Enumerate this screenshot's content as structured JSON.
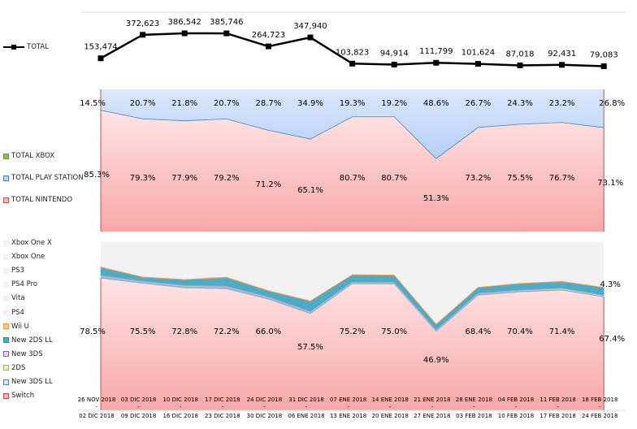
{
  "chart_data": [
    {
      "type": "line",
      "title": "",
      "series": [
        {
          "name": "TOTAL",
          "values": [
            153474,
            372623,
            386542,
            385746,
            264723,
            347940,
            103823,
            94914,
            111799,
            101624,
            87018,
            92431,
            79083
          ],
          "labels": [
            "153,474",
            "372,623",
            "386,542",
            "385,746",
            "264,723",
            "347,940",
            "103,823",
            "94,914",
            "111,799",
            "101,624",
            "87,018",
            "92,431",
            "79,083"
          ]
        }
      ]
    },
    {
      "type": "area",
      "stacked_percent": true,
      "series": [
        {
          "name": "TOTAL NINTENDO",
          "color": "#f4a6a6",
          "values": [
            85.3,
            79.3,
            77.9,
            79.2,
            71.2,
            65.1,
            80.7,
            80.7,
            51.3,
            73.2,
            75.5,
            76.7,
            73.1
          ]
        },
        {
          "name": "TOTAL PLAY STATION",
          "color": "#a9c8f4",
          "values": [
            14.5,
            20.7,
            21.8,
            20.7,
            28.7,
            34.9,
            19.3,
            19.2,
            48.6,
            26.7,
            24.3,
            23.2,
            26.8
          ]
        },
        {
          "name": "TOTAL XBOX",
          "color": "#8cbf4f",
          "values": [
            0.2,
            0,
            0.3,
            0.1,
            0.1,
            0,
            0,
            0.1,
            0.1,
            0.1,
            0.2,
            0.1,
            0.1
          ]
        }
      ]
    },
    {
      "type": "area",
      "stacked_percent": true,
      "series": [
        {
          "name": "Switch",
          "color": "#f4a6a6",
          "values": [
            78.5,
            75.5,
            72.8,
            72.2,
            66.0,
            57.5,
            75.2,
            75.0,
            46.9,
            68.4,
            70.4,
            71.4,
            67.4
          ],
          "labeled": true
        },
        {
          "name": "New 3DS LL",
          "color": "#8eb4e3",
          "values": [
            1.0,
            0.8,
            0.9,
            1.0,
            0.9,
            0.8,
            0.6,
            0.6,
            0.5,
            0.7,
            0.7,
            0.6,
            0.6
          ]
        },
        {
          "name": "2DS",
          "color": "#c3d69b",
          "values": [
            0.3,
            0.2,
            0.3,
            0.3,
            0.2,
            0.2,
            0.2,
            0.2,
            0.2,
            0.2,
            0.2,
            0.4,
            0.2
          ]
        },
        {
          "name": "New 3DS",
          "color": "#b3a2c7",
          "values": [
            0.7,
            0.6,
            0.6,
            0.6,
            0.6,
            0.6,
            0.6,
            0.6,
            0.5,
            0.6,
            0.5,
            0.5,
            0.5
          ]
        },
        {
          "name": "New 2DS LL",
          "color": "#4bacc6",
          "values": [
            4.5,
            2.0,
            3.0,
            4.8,
            3.3,
            5.8,
            3.9,
            3.9,
            2.9,
            3.1,
            3.5,
            3.6,
            4.3
          ],
          "end_label": "4.3%"
        },
        {
          "name": "Wii U",
          "color": "#f7a15a",
          "values": [
            0.3,
            0.2,
            0.3,
            0.3,
            0.2,
            0.2,
            0.2,
            0.2,
            0.3,
            0.2,
            0.2,
            0.2,
            0.1
          ]
        },
        {
          "name": "PS4",
          "color": "#f2f2f2",
          "values": []
        },
        {
          "name": "Vita",
          "color": "#f2f2f2",
          "values": []
        },
        {
          "name": "PS4 Pro",
          "color": "#f2f2f2",
          "values": []
        },
        {
          "name": "PS3",
          "color": "#f2f2f2",
          "values": []
        },
        {
          "name": "Xbox One",
          "color": "#f2f2f2",
          "values": []
        },
        {
          "name": "Xbox One X",
          "color": "#f2f2f2",
          "values": []
        }
      ]
    }
  ],
  "categories_top": [
    "26 NOV 2018",
    "03 DIC 2018",
    "10 DIC 2018",
    "17 DIC 2018",
    "24 DIC 2018",
    "31 DIC 2018",
    "07 ENE 2018",
    "14 ENE 2018",
    "21 ENE 2018",
    "28 ENE 2018",
    "04 FEB 2018",
    "11 FEB 2018",
    "18 FEB 2018"
  ],
  "categories_bottom": [
    "02 DIC 2018",
    "09 DIC 2018",
    "16 DIC 2018",
    "23 DIC 2018",
    "30 DIC 2018",
    "06 ENE 2018",
    "13 ENE 2018",
    "20 ENE 2018",
    "27 ENE 2018",
    "03 FEB 2018",
    "10 FEB 2018",
    "17 FEB 2018",
    "24 FEB 2018"
  ],
  "legend": {
    "total": "TOTAL",
    "mid": [
      "TOTAL XBOX",
      "TOTAL PLAY STATION",
      "TOTAL NINTENDO"
    ],
    "bottom": [
      "Xbox One X",
      "Xbox One",
      "PS3",
      "PS4 Pro",
      "Vita",
      "PS4",
      "Wii U",
      "New 2DS LL",
      "New 3DS",
      "2DS",
      "New 3DS LL",
      "Switch"
    ]
  }
}
